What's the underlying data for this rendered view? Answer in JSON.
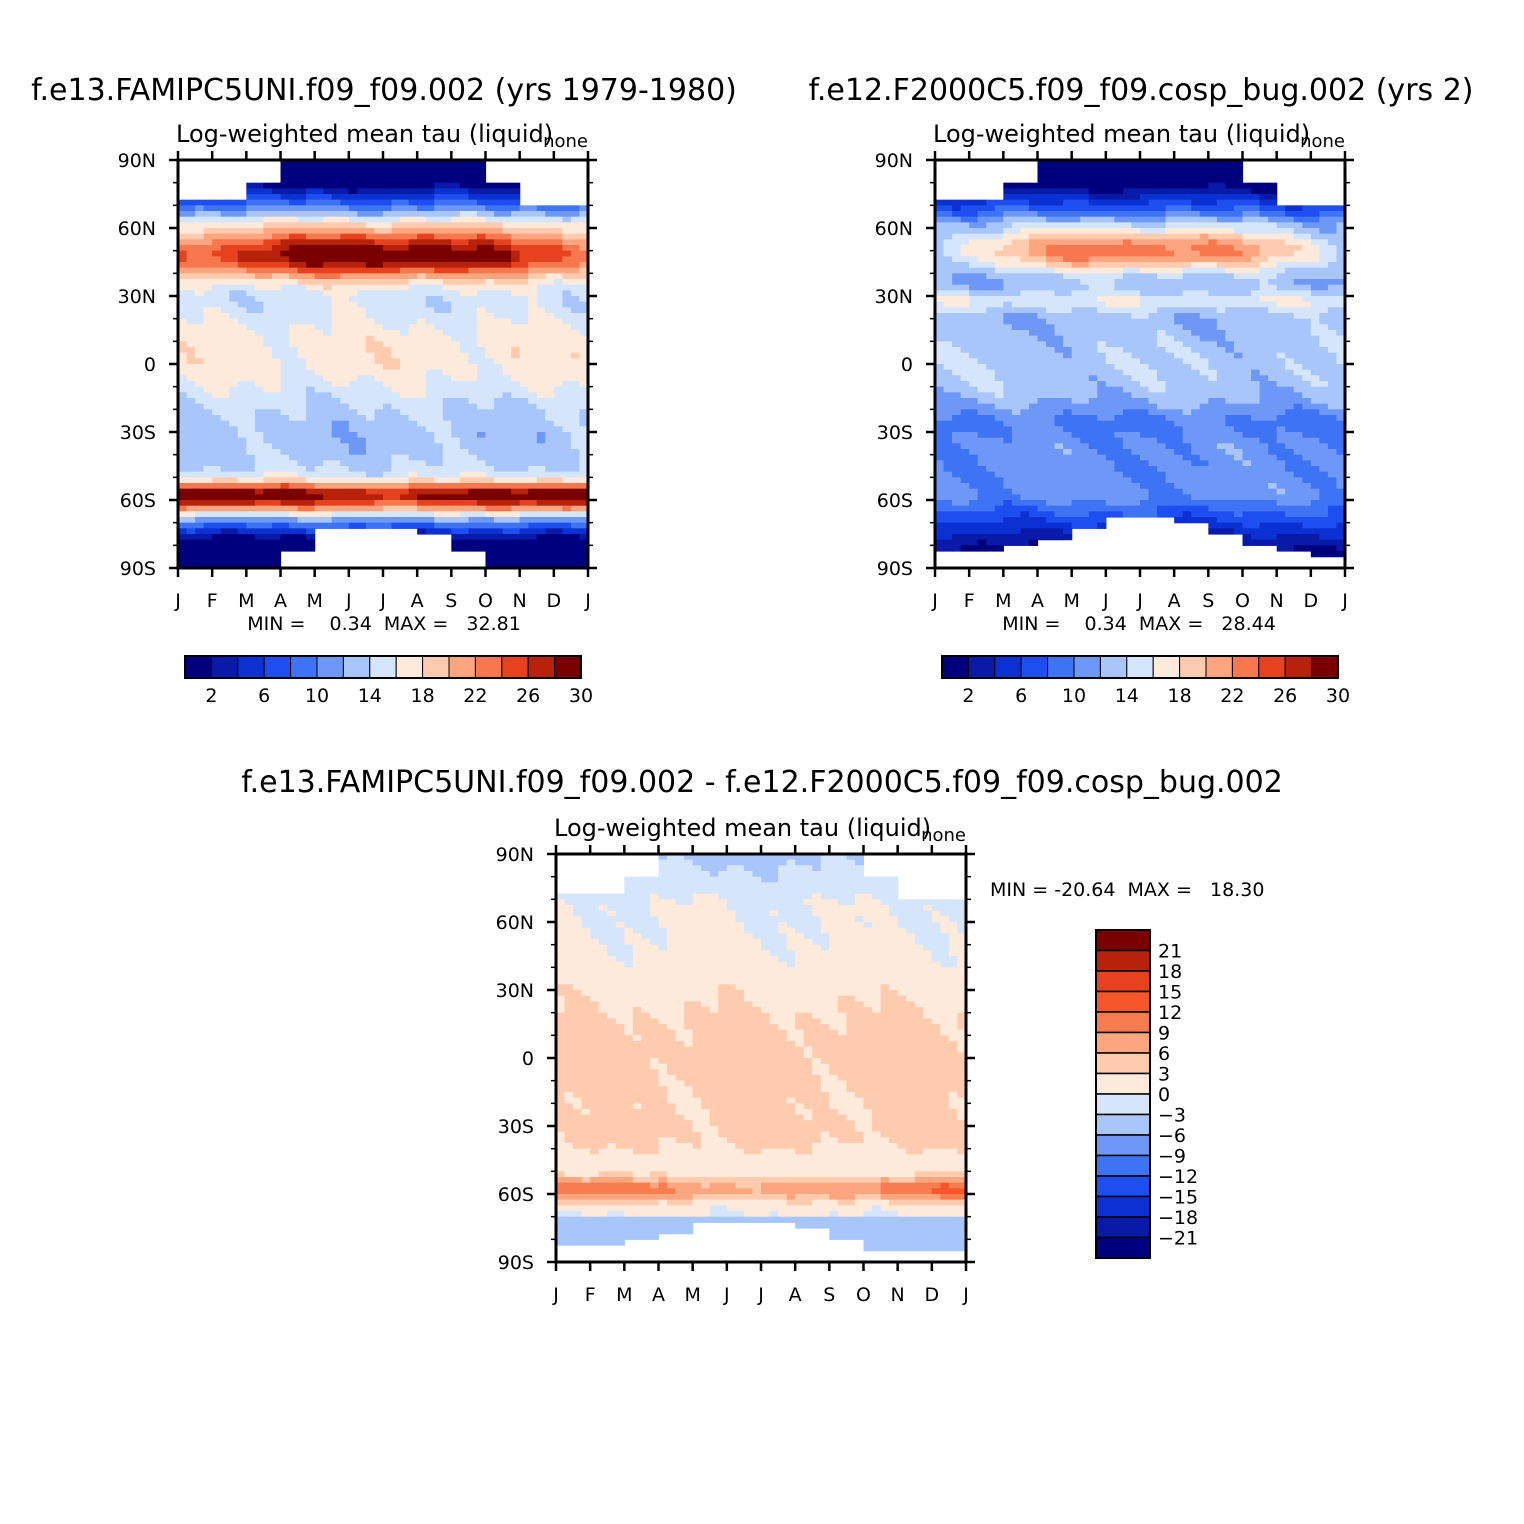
{
  "figure": {
    "panels": [
      {
        "id": "model-a",
        "case_title": "f.e13.FAMIPC5UNI.f09_f09.002 (yrs 1979-1980)",
        "subtitle": "Log-weighted mean tau (liquid)",
        "units": "none",
        "stats": "MIN =    0.34  MAX =   32.81"
      },
      {
        "id": "model-b",
        "case_title": "f.e12.F2000C5.f09_f09.cosp_bug.002 (yrs 2)",
        "subtitle": "Log-weighted mean tau (liquid)",
        "units": "none",
        "stats": "MIN =    0.34  MAX =   28.44"
      },
      {
        "id": "difference",
        "case_title": "f.e13.FAMIPC5UNI.f09_f09.002 - f.e12.F2000C5.f09_f09.cosp_bug.002",
        "subtitle": "Log-weighted mean tau (liquid)",
        "units": "none",
        "stats": "MIN = -20.64  MAX =   18.30"
      }
    ],
    "x_ticks": [
      "J",
      "F",
      "M",
      "A",
      "M",
      "J",
      "J",
      "A",
      "S",
      "O",
      "N",
      "D",
      "J"
    ],
    "y_ticks": [
      "90N",
      "60N",
      "30N",
      "0",
      "30S",
      "60S",
      "90S"
    ],
    "abs_colorbar": {
      "colors": [
        "#00007f",
        "#0a1aa8",
        "#0b31d2",
        "#1f4ef0",
        "#3f73f5",
        "#6e98f7",
        "#a8c6fb",
        "#d5e5fc",
        "#feeadb",
        "#fecbaf",
        "#fca57f",
        "#f7784e",
        "#e6421f",
        "#b8220b",
        "#7a0000"
      ],
      "labels": [
        "2",
        "6",
        "10",
        "14",
        "18",
        "22",
        "26",
        "30"
      ]
    },
    "diff_colorbar": {
      "colors": [
        "#7a0000",
        "#b8220b",
        "#e6421f",
        "#f7562a",
        "#f77c50",
        "#fca57f",
        "#fecbaf",
        "#feeadb",
        "#d5e5fc",
        "#a8c6fb",
        "#6e98f7",
        "#3f73f5",
        "#1f4ef0",
        "#0b31d2",
        "#0a1aa8",
        "#00007f"
      ],
      "labels": [
        "21",
        "18",
        "15",
        "12",
        "9",
        "6",
        "3",
        "0",
        "−3",
        "−6",
        "−9",
        "−12",
        "−15",
        "−18",
        "−21"
      ]
    }
  },
  "chart_data": [
    {
      "type": "heatmap",
      "title": "f.e13.FAMIPC5UNI.f09_f09.002 (yrs 1979-1980)",
      "subtitle": "Log-weighted mean tau (liquid)",
      "units": "none",
      "x": [
        "J",
        "F",
        "M",
        "A",
        "M",
        "J",
        "J",
        "A",
        "S",
        "O",
        "N",
        "D",
        "J"
      ],
      "y": [
        "90N",
        "60N",
        "30N",
        "0",
        "30S",
        "60S",
        "90S"
      ],
      "x_range": [
        0,
        12
      ],
      "y_range": [
        -90,
        90
      ],
      "z_range": [
        0,
        32
      ],
      "levels": [
        2,
        4,
        6,
        8,
        10,
        12,
        14,
        16,
        18,
        20,
        22,
        24,
        26,
        28,
        30
      ],
      "min": 0.34,
      "max": 32.81,
      "missing_north_edge_deg": [
        72,
        72,
        80,
        90,
        90,
        90,
        90,
        90,
        90,
        80,
        70,
        70,
        70
      ],
      "missing_south_edge_deg": [
        -90,
        -90,
        -90,
        -82,
        -72,
        -72,
        -72,
        -76,
        -82,
        -90,
        -90,
        -90,
        -90
      ],
      "features": [
        "NH mid-latitude maximum ~45-55N peaking in June-July",
        "SH storm-track maximum ~55-60S",
        "tropics near 14-18"
      ]
    },
    {
      "type": "heatmap",
      "title": "f.e12.F2000C5.f09_f09.cosp_bug.002 (yrs 2)",
      "subtitle": "Log-weighted mean tau (liquid)",
      "units": "none",
      "x": [
        "J",
        "F",
        "M",
        "A",
        "M",
        "J",
        "J",
        "A",
        "S",
        "O",
        "N",
        "D",
        "J"
      ],
      "y": [
        "90N",
        "60N",
        "30N",
        "0",
        "30S",
        "60S",
        "90S"
      ],
      "x_range": [
        0,
        12
      ],
      "y_range": [
        -90,
        90
      ],
      "z_range": [
        0,
        32
      ],
      "levels": [
        2,
        4,
        6,
        8,
        10,
        12,
        14,
        16,
        18,
        20,
        22,
        24,
        26,
        28,
        30
      ],
      "min": 0.34,
      "max": 28.44,
      "missing_north_edge_deg": [
        72,
        72,
        80,
        90,
        90,
        90,
        90,
        90,
        90,
        80,
        70,
        70,
        70
      ],
      "missing_south_edge_deg": [
        -82,
        -82,
        -80,
        -78,
        -72,
        -68,
        -68,
        -70,
        -76,
        -80,
        -82,
        -84,
        -84
      ],
      "features": [
        "NH summer maximum ~45-55N",
        "tropics and SH mostly 8-14",
        "high latitudes low"
      ]
    },
    {
      "type": "heatmap",
      "title": "f.e13.FAMIPC5UNI.f09_f09.002 - f.e12.F2000C5.f09_f09.cosp_bug.002",
      "subtitle": "Log-weighted mean tau (liquid)",
      "units": "none",
      "x": [
        "J",
        "F",
        "M",
        "A",
        "M",
        "J",
        "J",
        "A",
        "S",
        "O",
        "N",
        "D",
        "J"
      ],
      "y": [
        "90N",
        "60N",
        "30N",
        "0",
        "30S",
        "60S",
        "90S"
      ],
      "x_range": [
        0,
        12
      ],
      "y_range": [
        -90,
        90
      ],
      "z_range": [
        -21,
        21
      ],
      "levels": [
        -21,
        -18,
        -15,
        -12,
        -9,
        -6,
        -3,
        0,
        3,
        6,
        9,
        12,
        15,
        18,
        21
      ],
      "min": -20.64,
      "max": 18.3,
      "missing_north_edge_deg": [
        72,
        72,
        80,
        90,
        90,
        90,
        90,
        90,
        90,
        80,
        70,
        70,
        70
      ],
      "missing_south_edge_deg": [
        -82,
        -82,
        -80,
        -78,
        -72,
        -72,
        -72,
        -76,
        -80,
        -84,
        -84,
        -84,
        -84
      ],
      "features": [
        "mostly positive 0-6",
        "strong positive band ~55-62S (12-18)",
        "weak negatives at high latitudes"
      ]
    }
  ]
}
